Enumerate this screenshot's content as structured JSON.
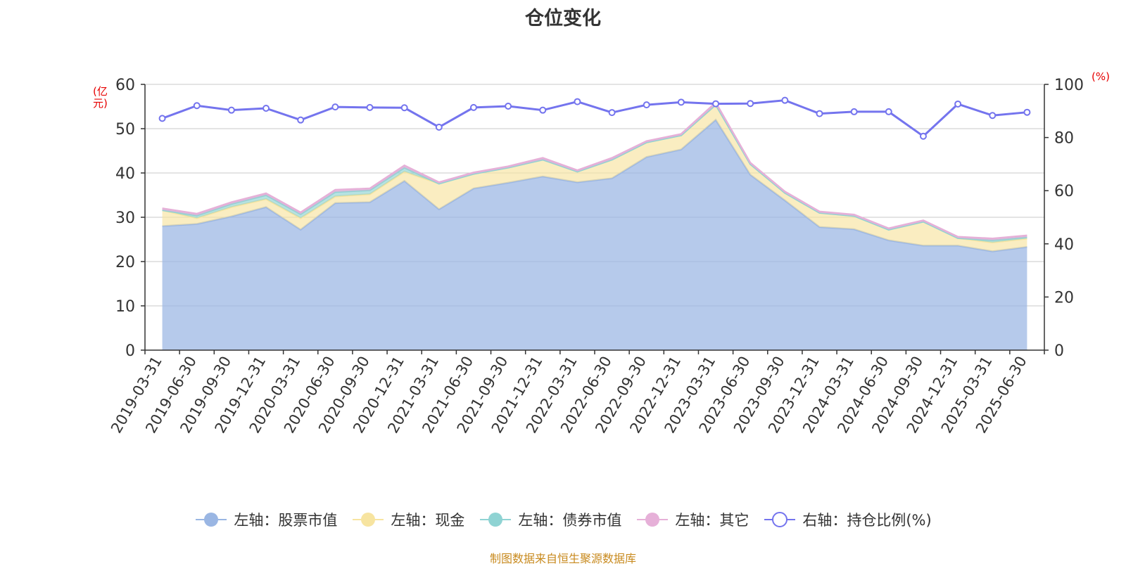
{
  "title": "仓位变化",
  "left_axis_unit": "(亿元)",
  "right_axis_unit": "(%)",
  "source_note": "制图数据来自恒生聚源数据库",
  "colors": {
    "stock": "#9ab6e3",
    "cash": "#f7e4a0",
    "bond": "#8fd3d3",
    "other": "#e6b0d8",
    "ratio": "#7474ee"
  },
  "chart_data": {
    "type": "area",
    "categories": [
      "2019-03-31",
      "2019-06-30",
      "2019-09-30",
      "2019-12-31",
      "2020-03-31",
      "2020-06-30",
      "2020-09-30",
      "2020-12-31",
      "2021-03-31",
      "2021-06-30",
      "2021-09-30",
      "2021-12-31",
      "2022-03-31",
      "2022-06-30",
      "2022-09-30",
      "2022-12-31",
      "2023-03-31",
      "2023-06-30",
      "2023-09-30",
      "2023-12-31",
      "2024-03-31",
      "2024-06-30",
      "2024-09-30",
      "2024-12-31",
      "2025-03-31",
      "2025-06-30"
    ],
    "left_axis": {
      "ylim": [
        0,
        60
      ],
      "ticks": [
        0,
        10,
        20,
        30,
        40,
        50,
        60
      ]
    },
    "right_axis": {
      "ylim": [
        0,
        100
      ],
      "ticks": [
        0,
        20,
        40,
        60,
        80,
        100
      ]
    },
    "grid": true,
    "legend_position": "bottom",
    "series": [
      {
        "key": "stock",
        "name": "左轴：股票市值",
        "axis": "left",
        "stack": true,
        "values": [
          28.0,
          28.5,
          30.2,
          32.3,
          27.2,
          33.2,
          33.4,
          38.2,
          31.8,
          36.5,
          37.8,
          39.2,
          37.9,
          38.8,
          43.6,
          45.3,
          52.0,
          39.6,
          33.8,
          27.8,
          27.3,
          24.8,
          23.6,
          23.6,
          22.3,
          23.3
        ]
      },
      {
        "key": "cash",
        "name": "左轴：现金",
        "axis": "left",
        "stack": true,
        "values": [
          3.6,
          1.3,
          2.1,
          1.8,
          2.6,
          1.5,
          1.8,
          2.1,
          5.8,
          3.3,
          3.4,
          3.8,
          2.4,
          4.2,
          3.3,
          3.2,
          3.4,
          2.4,
          1.7,
          3.2,
          3.0,
          2.4,
          5.4,
          1.7,
          2.0,
          1.9
        ]
      },
      {
        "key": "bond",
        "name": "左轴：债券市值",
        "axis": "left",
        "stack": true,
        "values": [
          0,
          0.6,
          0.7,
          0.9,
          0.9,
          1.0,
          0.9,
          0.9,
          0,
          0,
          0,
          0,
          0,
          0,
          0,
          0,
          0,
          0,
          0,
          0,
          0,
          0,
          0,
          0,
          0.5,
          0.3
        ]
      },
      {
        "key": "other",
        "name": "左轴：其它",
        "axis": "left",
        "stack": true,
        "values": [
          0.4,
          0.4,
          0.4,
          0.4,
          0.4,
          0.5,
          0.4,
          0.5,
          0.3,
          0.3,
          0.3,
          0.4,
          0.3,
          0.4,
          0.3,
          0.3,
          0.5,
          0.3,
          0.3,
          0.3,
          0.3,
          0.3,
          0.3,
          0.3,
          0.4,
          0.4
        ]
      },
      {
        "key": "ratio",
        "name": "右轴：持仓比例(%)",
        "axis": "right",
        "stack": false,
        "values": [
          87.2,
          92.0,
          90.3,
          91.0,
          86.6,
          91.5,
          91.3,
          91.2,
          83.9,
          91.3,
          91.8,
          90.3,
          93.5,
          89.4,
          92.3,
          93.3,
          92.7,
          92.8,
          94.0,
          89.0,
          89.7,
          89.7,
          80.5,
          92.6,
          88.3,
          89.5
        ]
      }
    ]
  }
}
